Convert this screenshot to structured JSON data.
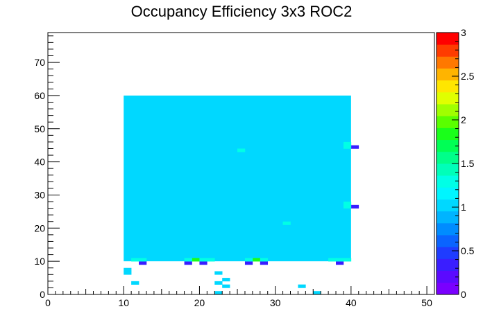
{
  "chart_data": {
    "type": "heatmap",
    "title": "Occupancy Efficiency 3x3 ROC2",
    "xlabel": "",
    "ylabel": "",
    "xlim": [
      0,
      51
    ],
    "ylim": [
      0,
      79
    ],
    "x_ticks": [
      0,
      10,
      20,
      30,
      40,
      50
    ],
    "y_ticks": [
      0,
      10,
      20,
      30,
      40,
      50,
      60,
      70
    ],
    "zlim": [
      0,
      3
    ],
    "z_ticks": [
      0,
      0.5,
      1,
      1.5,
      2,
      2.5,
      3
    ],
    "z_tick_labels": [
      "0",
      "0.5",
      "1",
      "1.5",
      "2",
      "2.5",
      "3"
    ],
    "palette_levels": 20,
    "palette_colors": [
      "#7a00ff",
      "#5b0aff",
      "#3a1eff",
      "#1f3cff",
      "#0a64ff",
      "#008cff",
      "#00b4ff",
      "#00d8ff",
      "#00f5ff",
      "#00ffe6",
      "#00ffb9",
      "#00ff8a",
      "#00ff55",
      "#1aff1a",
      "#5aff00",
      "#a0ff00",
      "#e0ff00",
      "#ffe600",
      "#ffb400",
      "#ff7800",
      "#ff3c00",
      "#ff0000"
    ],
    "base_region": {
      "x": [
        10,
        40
      ],
      "y": [
        10,
        60
      ],
      "value": 1.0
    },
    "cells": [
      {
        "x": 12,
        "y": 9,
        "value": 0.35
      },
      {
        "x": 18,
        "y": 9,
        "value": 0.35
      },
      {
        "x": 20,
        "y": 9,
        "value": 0.35
      },
      {
        "x": 26,
        "y": 9,
        "value": 0.35
      },
      {
        "x": 28,
        "y": 9,
        "value": 0.35
      },
      {
        "x": 38,
        "y": 9,
        "value": 0.35
      },
      {
        "x": 40,
        "y": 44,
        "value": 0.35
      },
      {
        "x": 40,
        "y": 26,
        "value": 0.35
      },
      {
        "x": 19,
        "y": 10,
        "value": 1.8
      },
      {
        "x": 27,
        "y": 10,
        "value": 1.8
      },
      {
        "x": 11,
        "y": 10,
        "value": 1.3
      },
      {
        "x": 12,
        "y": 10,
        "value": 1.3
      },
      {
        "x": 18,
        "y": 10,
        "value": 1.3
      },
      {
        "x": 20,
        "y": 10,
        "value": 1.3
      },
      {
        "x": 21,
        "y": 10,
        "value": 1.3
      },
      {
        "x": 26,
        "y": 10,
        "value": 1.3
      },
      {
        "x": 28,
        "y": 10,
        "value": 1.3
      },
      {
        "x": 37,
        "y": 10,
        "value": 1.3
      },
      {
        "x": 38,
        "y": 10,
        "value": 1.3
      },
      {
        "x": 39,
        "y": 10,
        "value": 1.3
      },
      {
        "x": 25,
        "y": 43,
        "value": 1.3
      },
      {
        "x": 39,
        "y": 44,
        "value": 1.3
      },
      {
        "x": 39,
        "y": 45,
        "value": 1.3
      },
      {
        "x": 39,
        "y": 26,
        "value": 1.3
      },
      {
        "x": 39,
        "y": 27,
        "value": 1.3
      },
      {
        "x": 31,
        "y": 21,
        "value": 1.3
      },
      {
        "x": 10,
        "y": 6,
        "value": 1.0
      },
      {
        "x": 10,
        "y": 7,
        "value": 1.0
      },
      {
        "x": 11,
        "y": 3,
        "value": 1.0
      },
      {
        "x": 22,
        "y": 6,
        "value": 1.0
      },
      {
        "x": 22,
        "y": 3,
        "value": 1.0
      },
      {
        "x": 23,
        "y": 4,
        "value": 1.0
      },
      {
        "x": 23,
        "y": 2,
        "value": 1.0
      },
      {
        "x": 22,
        "y": 0,
        "value": 1.0
      },
      {
        "x": 33,
        "y": 2,
        "value": 1.0
      },
      {
        "x": 35,
        "y": 0,
        "value": 1.0
      }
    ]
  }
}
